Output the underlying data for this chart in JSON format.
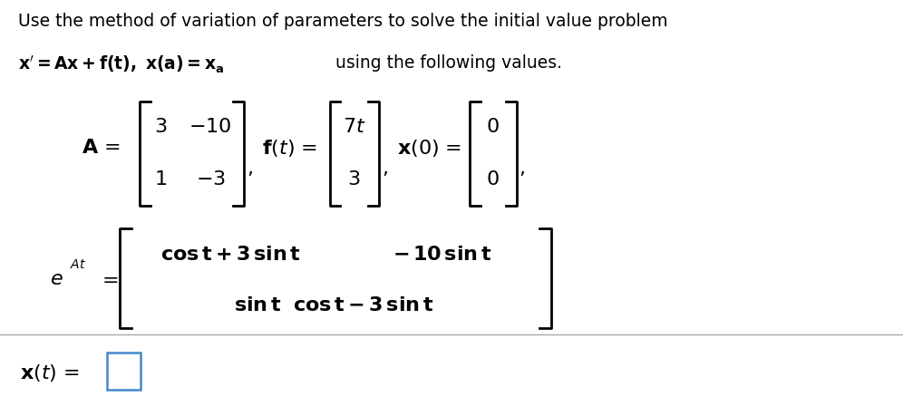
{
  "title_line1": "Use the method of variation of parameters to solve the initial value problem",
  "bg_color": "#ffffff",
  "text_color": "#000000",
  "font_size_title": 13.5,
  "font_size_math": 16,
  "lw": 2.0
}
